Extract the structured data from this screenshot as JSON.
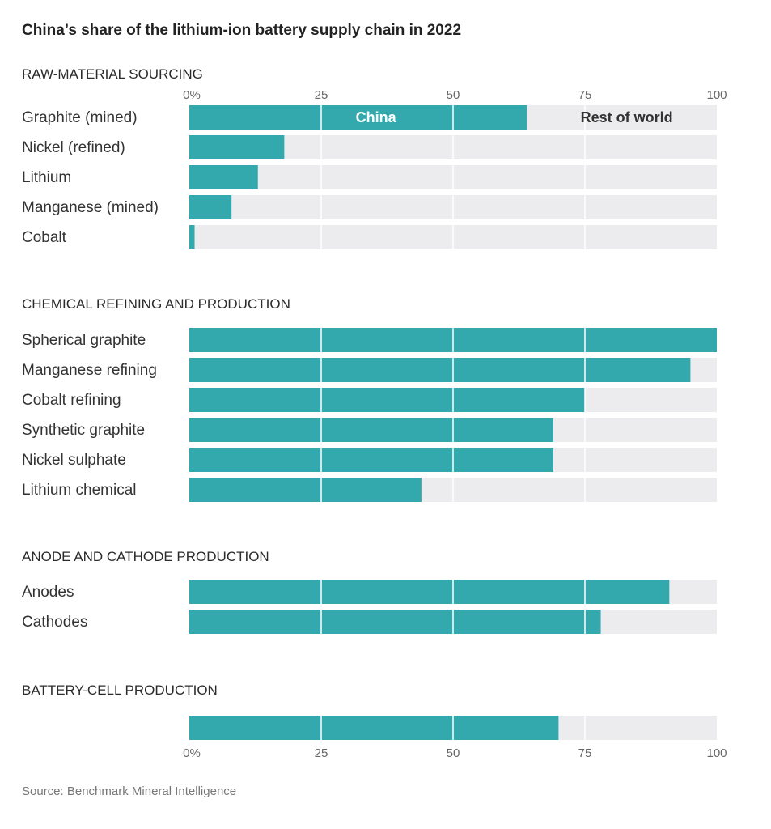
{
  "chart_data": {
    "type": "bar",
    "orientation": "horizontal",
    "stacked": true,
    "title": "China’s share of the lithium-ion battery supply chain in 2022",
    "source": "Source: Benchmark Mineral Intelligence",
    "xlim": [
      0,
      100
    ],
    "ticks": [
      {
        "value": 0,
        "label": "0%"
      },
      {
        "value": 25,
        "label": "25"
      },
      {
        "value": 50,
        "label": "50"
      },
      {
        "value": 75,
        "label": "75"
      },
      {
        "value": 100,
        "label": "100"
      }
    ],
    "series": [
      {
        "name": "China",
        "color": "#33a9ad"
      },
      {
        "name": "Rest of world",
        "color": "#ececee"
      }
    ],
    "sections": [
      {
        "label": "RAW-MATERIAL SOURCING",
        "rows": [
          {
            "label": "Graphite (mined)",
            "value": 64
          },
          {
            "label": "Nickel (refined)",
            "value": 18
          },
          {
            "label": "Lithium",
            "value": 13
          },
          {
            "label": "Manganese (mined)",
            "value": 8
          },
          {
            "label": "Cobalt",
            "value": 1
          }
        ]
      },
      {
        "label": "CHEMICAL REFINING AND PRODUCTION",
        "rows": [
          {
            "label": "Spherical graphite",
            "value": 100
          },
          {
            "label": "Manganese refining",
            "value": 95
          },
          {
            "label": "Cobalt refining",
            "value": 75
          },
          {
            "label": "Synthetic graphite",
            "value": 69
          },
          {
            "label": "Nickel sulphate",
            "value": 69
          },
          {
            "label": "Lithium chemical",
            "value": 44
          }
        ]
      },
      {
        "label": "ANODE AND CATHODE PRODUCTION",
        "rows": [
          {
            "label": "Anodes",
            "value": 91
          },
          {
            "label": "Cathodes",
            "value": 78
          }
        ]
      },
      {
        "label": "BATTERY-CELL PRODUCTION",
        "rows": [
          {
            "label": "",
            "value": 70
          }
        ]
      }
    ]
  }
}
